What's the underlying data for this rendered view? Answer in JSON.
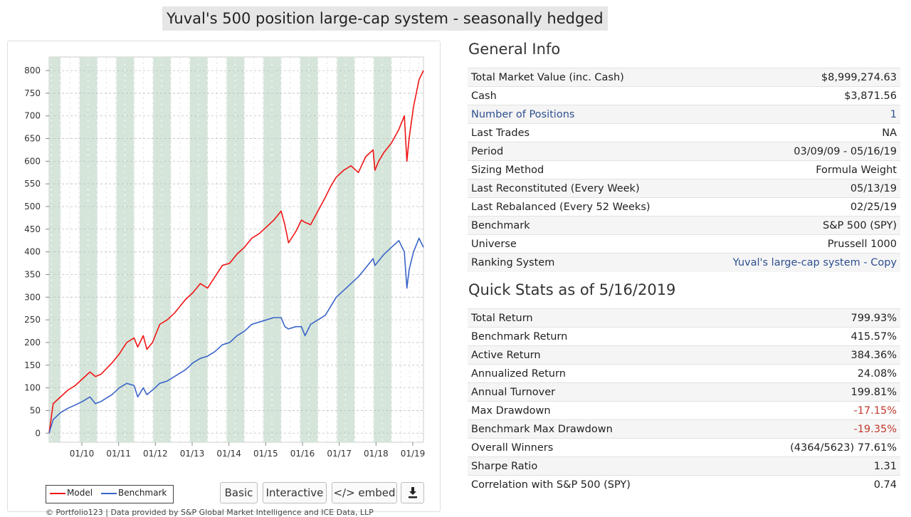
{
  "page": {
    "title": "Yuval's 500 position large-cap system - seasonally hedged"
  },
  "chart_data": {
    "type": "line",
    "title": "",
    "xlabel": "",
    "ylabel": "",
    "x_tick_labels": [
      "01/10",
      "01/11",
      "01/12",
      "01/13",
      "01/14",
      "01/15",
      "01/16",
      "01/17",
      "01/18",
      "01/19"
    ],
    "y_tick_labels": [
      "0",
      "50",
      "100",
      "150",
      "200",
      "250",
      "300",
      "350",
      "400",
      "450",
      "500",
      "550",
      "600",
      "650",
      "700",
      "750",
      "800"
    ],
    "xlim": [
      "03/09/09",
      "05/16/19"
    ],
    "ylim": [
      -20,
      830
    ],
    "grid": true,
    "legend_position": "bottom-left",
    "series": [
      {
        "name": "Model",
        "color": "#f01414",
        "x": [
          2009.19,
          2009.3,
          2009.5,
          2009.7,
          2009.9,
          2010.1,
          2010.3,
          2010.45,
          2010.6,
          2010.9,
          2011.1,
          2011.3,
          2011.5,
          2011.6,
          2011.75,
          2011.85,
          2012.0,
          2012.2,
          2012.4,
          2012.6,
          2012.9,
          2013.1,
          2013.3,
          2013.5,
          2013.7,
          2013.9,
          2014.1,
          2014.3,
          2014.5,
          2014.7,
          2014.9,
          2015.1,
          2015.3,
          2015.5,
          2015.6,
          2015.7,
          2015.9,
          2016.05,
          2016.15,
          2016.3,
          2016.5,
          2016.7,
          2016.85,
          2017.0,
          2017.2,
          2017.4,
          2017.6,
          2017.8,
          2018.0,
          2018.05,
          2018.15,
          2018.3,
          2018.5,
          2018.7,
          2018.85,
          2018.92,
          2018.98,
          2019.1,
          2019.25,
          2019.37
        ],
        "values": [
          0,
          65,
          80,
          95,
          105,
          120,
          135,
          125,
          130,
          155,
          175,
          200,
          210,
          190,
          215,
          185,
          200,
          240,
          250,
          265,
          295,
          310,
          330,
          320,
          345,
          370,
          375,
          395,
          410,
          430,
          440,
          455,
          470,
          490,
          460,
          420,
          445,
          470,
          465,
          460,
          490,
          520,
          545,
          565,
          580,
          590,
          575,
          610,
          625,
          580,
          600,
          620,
          640,
          670,
          700,
          600,
          650,
          720,
          780,
          800
        ]
      },
      {
        "name": "Benchmark",
        "color": "#3a64c9",
        "x": [
          2009.19,
          2009.3,
          2009.5,
          2009.7,
          2009.9,
          2010.1,
          2010.3,
          2010.45,
          2010.6,
          2010.9,
          2011.1,
          2011.3,
          2011.5,
          2011.6,
          2011.75,
          2011.85,
          2012.0,
          2012.2,
          2012.4,
          2012.6,
          2012.9,
          2013.1,
          2013.3,
          2013.5,
          2013.7,
          2013.9,
          2014.1,
          2014.3,
          2014.5,
          2014.7,
          2014.9,
          2015.1,
          2015.3,
          2015.5,
          2015.6,
          2015.7,
          2015.9,
          2016.05,
          2016.15,
          2016.3,
          2016.5,
          2016.7,
          2016.85,
          2017.0,
          2017.2,
          2017.4,
          2017.6,
          2017.8,
          2018.0,
          2018.05,
          2018.15,
          2018.3,
          2018.5,
          2018.7,
          2018.85,
          2018.92,
          2018.98,
          2019.1,
          2019.25,
          2019.37
        ],
        "values": [
          0,
          30,
          45,
          55,
          62,
          70,
          80,
          65,
          70,
          85,
          100,
          110,
          105,
          80,
          100,
          85,
          95,
          110,
          115,
          125,
          140,
          155,
          165,
          170,
          180,
          195,
          200,
          215,
          225,
          240,
          245,
          250,
          255,
          255,
          235,
          230,
          235,
          235,
          215,
          240,
          250,
          260,
          280,
          300,
          315,
          330,
          345,
          365,
          385,
          370,
          380,
          395,
          410,
          425,
          400,
          320,
          360,
          400,
          430,
          410
        ]
      }
    ]
  },
  "chart_footer": {
    "credit": "© Portfolio123 | Data provided by S&P Global Market Intelligence and ICE Data, LLP",
    "legend": {
      "model": "Model",
      "benchmark": "Benchmark"
    },
    "buttons": {
      "basic": "Basic",
      "interactive": "Interactive",
      "embed": "</> embed"
    }
  },
  "general_info": {
    "title": "General Info",
    "rows": [
      {
        "label": "Total Market Value (inc. Cash)",
        "value": "$8,999,274.63"
      },
      {
        "label": "Cash",
        "value": "$3,871.56"
      },
      {
        "label": "Number of Positions",
        "value": "1"
      },
      {
        "label": "Last Trades",
        "value": "NA"
      },
      {
        "label": "Period",
        "value": "03/09/09 - 05/16/19"
      },
      {
        "label": "Sizing Method",
        "value": "Formula Weight"
      },
      {
        "label": "Last Reconstituted (Every Week)",
        "value": "05/13/19"
      },
      {
        "label": "Last Rebalanced (Every 52 Weeks)",
        "value": "02/25/19"
      },
      {
        "label": "Benchmark",
        "value": "S&P 500 (SPY)"
      },
      {
        "label": "Universe",
        "value": "Prussell 1000"
      },
      {
        "label": "Ranking System",
        "value": "Yuval's large-cap system - Copy"
      }
    ]
  },
  "quick_stats": {
    "title": "Quick Stats as of 5/16/2019",
    "rows": [
      {
        "label": "Total Return",
        "value": "799.93%"
      },
      {
        "label": "Benchmark Return",
        "value": "415.57%"
      },
      {
        "label": "Active Return",
        "value": "384.36%"
      },
      {
        "label": "Annualized Return",
        "value": "24.08%"
      },
      {
        "label": "Annual Turnover",
        "value": "199.81%"
      },
      {
        "label": "Max Drawdown",
        "value": "-17.15%"
      },
      {
        "label": "Benchmark Max Drawdown",
        "value": "-19.35%"
      },
      {
        "label": "Overall Winners",
        "value": "(4364/5623) 77.61%"
      },
      {
        "label": "Sharpe Ratio",
        "value": "1.31"
      },
      {
        "label": "Correlation with S&P 500 (SPY)",
        "value": "0.74"
      }
    ]
  },
  "colors": {
    "negative": "#c0392b",
    "link": "#2e4f8f",
    "shade": "#d5e5da"
  }
}
